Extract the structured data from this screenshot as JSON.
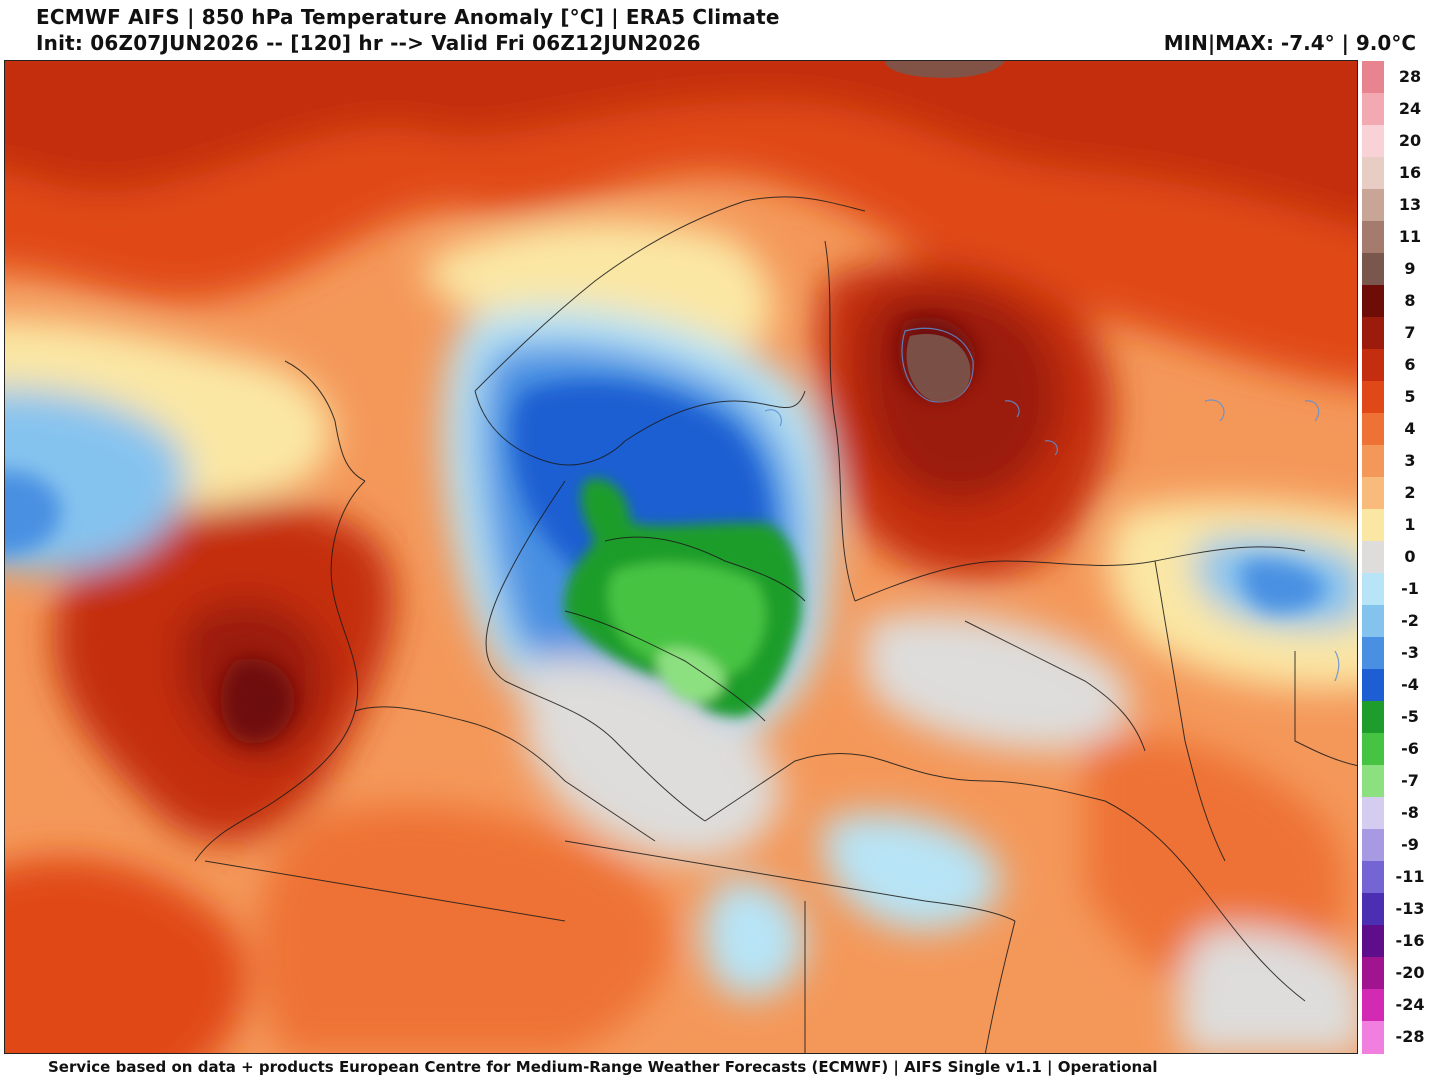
{
  "header": {
    "line1": "ECMWF AIFS | 850 hPa Temperature Anomaly [°C] | ERA5 Climate",
    "line2": "Init: 06Z07JUN2026 -- [120] hr --> Valid Fri 06Z12JUN2026",
    "minmax": "MIN|MAX: -7.4° | 9.0°C"
  },
  "footer": {
    "text": "Service based on data + products European Centre for Medium-Range Weather Forecasts (ECMWF) | AIFS Single v1.1 | Operational"
  },
  "colorbar": {
    "entries": [
      {
        "label": "28",
        "color": "#e8848f"
      },
      {
        "label": "24",
        "color": "#f2a9b1"
      },
      {
        "label": "20",
        "color": "#f8d2d6"
      },
      {
        "label": "16",
        "color": "#e7cdc4"
      },
      {
        "label": "13",
        "color": "#c9a597"
      },
      {
        "label": "11",
        "color": "#a47b6c"
      },
      {
        "label": "9",
        "color": "#7a574c"
      },
      {
        "label": "8",
        "color": "#6e0d07"
      },
      {
        "label": "7",
        "color": "#9b1c0c"
      },
      {
        "label": "6",
        "color": "#c42d0f"
      },
      {
        "label": "5",
        "color": "#e04818"
      },
      {
        "label": "4",
        "color": "#ee7235"
      },
      {
        "label": "3",
        "color": "#f4985a"
      },
      {
        "label": "2",
        "color": "#f8bb7c"
      },
      {
        "label": "1",
        "color": "#fbe7a4"
      },
      {
        "label": "0",
        "color": "#dedddb"
      },
      {
        "label": "-1",
        "color": "#b7e4f6"
      },
      {
        "label": "-2",
        "color": "#85c3ef"
      },
      {
        "label": "-3",
        "color": "#4a90e2"
      },
      {
        "label": "-4",
        "color": "#1d5fd2"
      },
      {
        "label": "-5",
        "color": "#1e9d2c"
      },
      {
        "label": "-6",
        "color": "#46c343"
      },
      {
        "label": "-7",
        "color": "#8de080"
      },
      {
        "label": "-8",
        "color": "#d4cdef"
      },
      {
        "label": "-9",
        "color": "#a79ae3"
      },
      {
        "label": "-11",
        "color": "#7565d4"
      },
      {
        "label": "-13",
        "color": "#4b2fb3"
      },
      {
        "label": "-16",
        "color": "#5e0e8a"
      },
      {
        "label": "-20",
        "color": "#a0158f"
      },
      {
        "label": "-24",
        "color": "#d22ab3"
      },
      {
        "label": "-28",
        "color": "#f07fdf"
      }
    ]
  }
}
